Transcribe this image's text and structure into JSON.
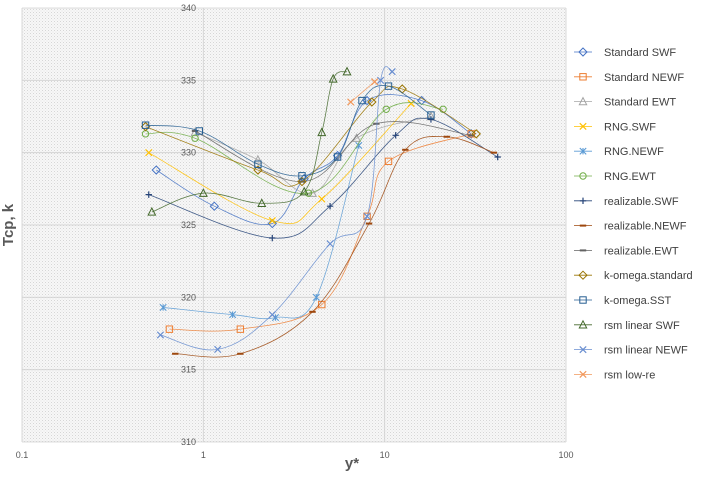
{
  "chart_data": {
    "type": "scatter",
    "title": "",
    "xlabel": "y*",
    "ylabel": "Tcp, k",
    "xscale": "log",
    "xlim": [
      0.1,
      100
    ],
    "ylim": [
      310,
      340
    ],
    "xticks": [
      "0.1",
      "1",
      "10",
      "100"
    ],
    "yticks": [
      "310",
      "315",
      "320",
      "325",
      "330",
      "335",
      "340"
    ],
    "grid": true,
    "legend_position": "right",
    "series": [
      {
        "name": "Standard SWF",
        "color": "#4472c4",
        "marker": "diamond",
        "x": [
          0.55,
          1.15,
          2.4,
          3.6,
          5.5,
          8.0,
          16.0,
          30.0
        ],
        "y": [
          328.8,
          326.3,
          325.1,
          328.2,
          329.8,
          333.6,
          333.6,
          331.3
        ]
      },
      {
        "name": "Standard NEWF",
        "color": "#ed7d31",
        "marker": "square",
        "x": [
          0.65,
          1.6,
          4.5,
          8.0,
          10.5,
          30.0
        ],
        "y": [
          317.8,
          317.8,
          319.5,
          325.6,
          329.4,
          331.3
        ]
      },
      {
        "name": "Standard EWT",
        "color": "#a5a5a5",
        "marker": "triangle",
        "x": [
          0.9,
          2.0,
          4.0,
          7.0,
          18.0
        ],
        "y": [
          331.4,
          329.5,
          327.2,
          331.0,
          332.5
        ]
      },
      {
        "name": "RNG.SWF",
        "color": "#ffc000",
        "marker": "x",
        "x": [
          0.5,
          2.4,
          4.5,
          14.0
        ],
        "y": [
          330.0,
          325.3,
          326.8,
          333.4
        ]
      },
      {
        "name": "RNG.NEWF",
        "color": "#5b9bd5",
        "marker": "star",
        "x": [
          0.6,
          1.45,
          2.5,
          4.2,
          7.2
        ],
        "y": [
          319.3,
          318.8,
          318.6,
          320.0,
          330.5
        ]
      },
      {
        "name": "RNG.EWT",
        "color": "#70ad47",
        "marker": "circle",
        "x": [
          0.48,
          0.9,
          3.8,
          10.2,
          21.0
        ],
        "y": [
          331.3,
          331.0,
          327.2,
          333.0,
          333.0
        ]
      },
      {
        "name": "realizable.SWF",
        "color": "#264478",
        "marker": "plus",
        "x": [
          0.5,
          2.4,
          5.0,
          11.5,
          18.0,
          42.0
        ],
        "y": [
          327.1,
          324.1,
          326.3,
          331.2,
          332.3,
          329.7
        ]
      },
      {
        "name": "realizable.NEWF",
        "color": "#9e480e",
        "marker": "dash",
        "x": [
          0.7,
          1.6,
          4.0,
          8.2,
          13.0,
          22.0,
          40.0
        ],
        "y": [
          316.1,
          316.1,
          319.0,
          325.1,
          330.2,
          331.1,
          330.0
        ]
      },
      {
        "name": "realizable.EWT",
        "color": "#636363",
        "marker": "dash",
        "x": [
          0.9,
          3.5,
          9.0,
          30.0
        ],
        "y": [
          331.5,
          328.0,
          332.0,
          331.2
        ]
      },
      {
        "name": "k-omega.standard",
        "color": "#997300",
        "marker": "diamond",
        "x": [
          0.48,
          2.0,
          3.5,
          8.5,
          12.5,
          32.0
        ],
        "y": [
          331.8,
          328.8,
          328.0,
          333.5,
          334.4,
          331.3
        ]
      },
      {
        "name": "k-omega.SST",
        "color": "#255e91",
        "marker": "square",
        "x": [
          0.48,
          0.95,
          2.0,
          3.5,
          5.5,
          7.5,
          10.5,
          18.0
        ],
        "y": [
          331.9,
          331.5,
          329.2,
          328.4,
          329.7,
          333.6,
          334.6,
          332.6
        ]
      },
      {
        "name": "rsm linear SWF",
        "color": "#43682b",
        "marker": "triangle",
        "x": [
          0.52,
          1.0,
          2.1,
          3.6,
          4.5,
          5.2,
          6.2
        ],
        "y": [
          325.9,
          327.2,
          326.5,
          327.3,
          331.4,
          335.1,
          335.6
        ]
      },
      {
        "name": "rsm linear NEWF",
        "color": "#698ed0",
        "marker": "x",
        "x": [
          0.58,
          1.2,
          2.4,
          5.0,
          8.0,
          9.5,
          11.0
        ],
        "y": [
          317.4,
          316.4,
          318.8,
          323.7,
          325.6,
          335.0,
          335.6
        ]
      },
      {
        "name": "rsm low-re",
        "color": "#f1975a",
        "marker": "x",
        "x": [
          6.5,
          8.8
        ],
        "y": [
          333.5,
          334.9
        ]
      }
    ]
  }
}
